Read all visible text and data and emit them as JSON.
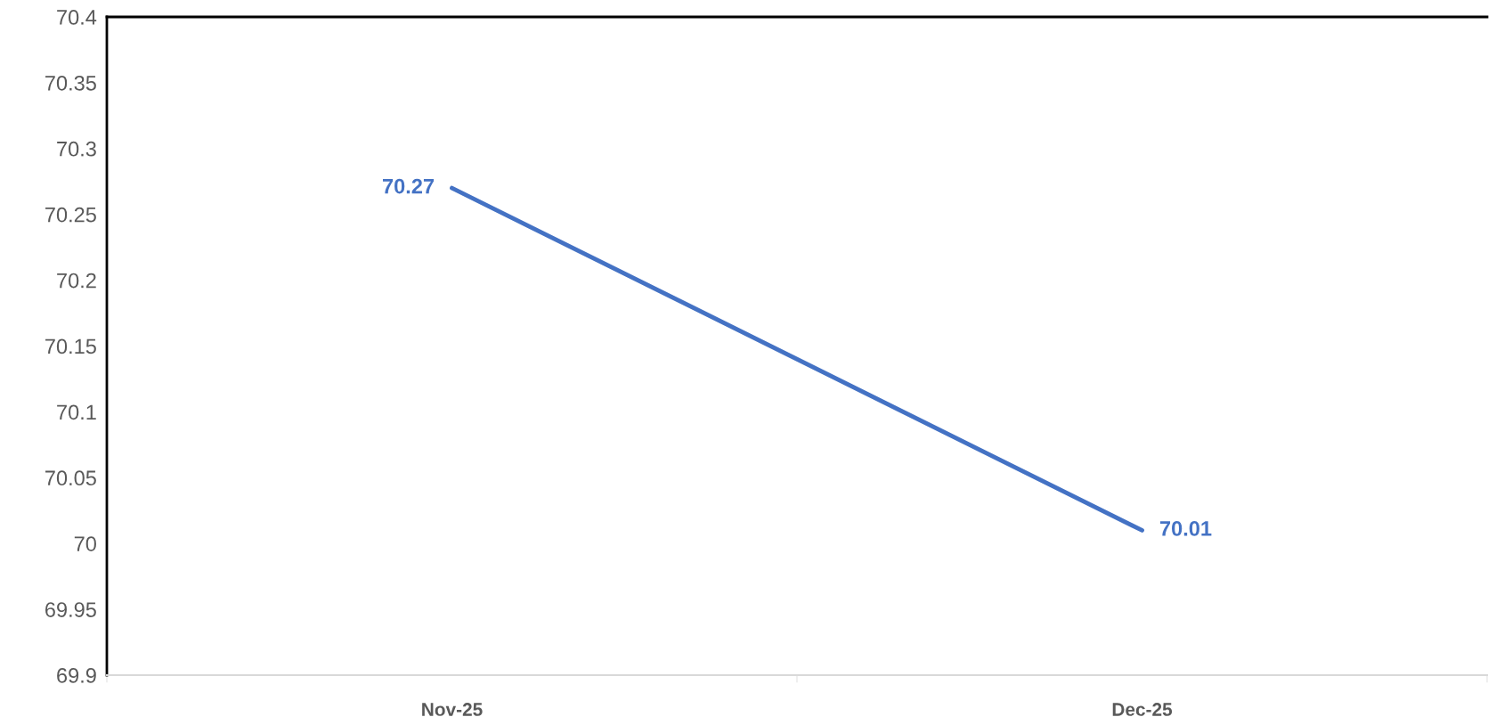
{
  "chart_data": {
    "type": "line",
    "categories": [
      "Nov-25",
      "Dec-25"
    ],
    "series": [
      {
        "color": "#4472c4",
        "values": [
          70.27,
          70.01
        ]
      }
    ],
    "ylim": [
      69.9,
      70.4
    ],
    "yticks": [
      69.9,
      69.95,
      70,
      70.05,
      70.1,
      70.15,
      70.2,
      70.25,
      70.3,
      70.35,
      70.4
    ],
    "data_labels": true,
    "grid": false,
    "legend": false,
    "marker": "none",
    "line_style": "solid"
  }
}
